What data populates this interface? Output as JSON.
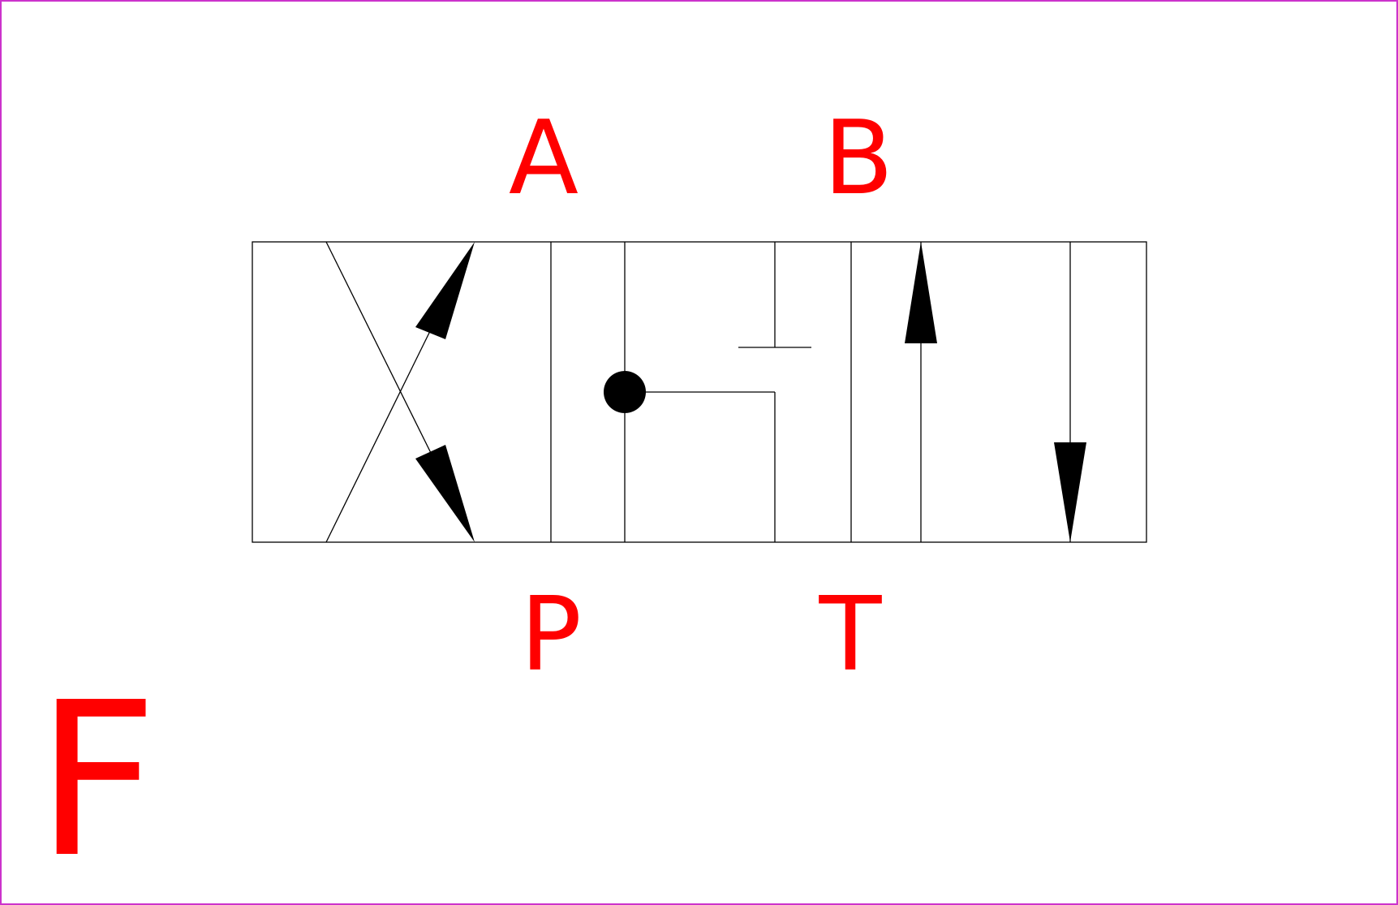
{
  "diagram": {
    "ports": {
      "a": "A",
      "b": "B",
      "p": "P",
      "t": "T"
    },
    "variant": "F",
    "colors": {
      "label": "#ff0000",
      "frame": "#cc33cc",
      "symbol": "#000000"
    }
  }
}
